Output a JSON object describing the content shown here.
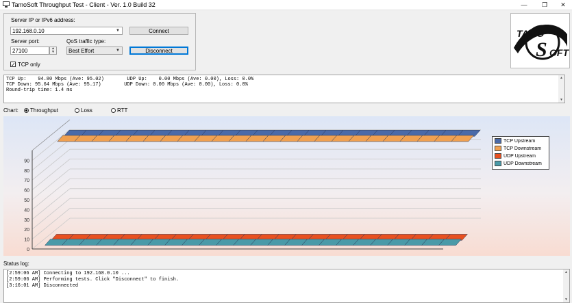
{
  "window": {
    "title": "TamoSoft Throughput Test - Client - Ver. 1.0 Build 32",
    "minimize": "—",
    "maximize": "❐",
    "close": "✕"
  },
  "connection": {
    "server_label": "Server IP or IPv6  address:",
    "server_value": "192.168.0.10",
    "port_label": "Server port:",
    "port_value": "27100",
    "qos_label": "QoS traffic type:",
    "qos_value": "Best Effort",
    "connect_label": "Connect",
    "disconnect_label": "Disconnect",
    "tcp_only_label": "TCP only",
    "tcp_only_checked": "✓"
  },
  "logo": {
    "top": "TAMO",
    "bottom": "OFT",
    "s": "S"
  },
  "stats": {
    "lines": [
      "TCP Up:    94.80 Mbps (Ave: 95.02)        UDP Up:    0.00 Mbps (Ave: 0.00), Loss: 0.0%",
      "TCP Down: 95.64 Mbps (Ave: 95.17)        UDP Down: 0.00 Mbps (Ave: 0.00), Loss: 0.0%",
      "Round-trip time: 1.4 ms"
    ]
  },
  "chart_options": {
    "label": "Chart:",
    "throughput": "Throughput",
    "loss": "Loss",
    "rtt": "RTT",
    "selected": "Throughput"
  },
  "chart_data": {
    "type": "area",
    "y_ticks": [
      "0",
      "10",
      "20",
      "30",
      "40",
      "50",
      "60",
      "70",
      "80",
      "90"
    ],
    "ylim": [
      0,
      100
    ],
    "series": [
      {
        "name": "TCP Upstream",
        "color": "#4a6aa8",
        "values": [
          95,
          95,
          95,
          95,
          95,
          95,
          95,
          95,
          95,
          95,
          95,
          95,
          95,
          95,
          95,
          95,
          95,
          95,
          95,
          95,
          95,
          95,
          95,
          95,
          95
        ]
      },
      {
        "name": "TCP Downstream",
        "color": "#f0a050",
        "values": [
          95,
          95,
          95,
          95,
          95,
          95,
          95,
          95,
          95,
          95,
          95,
          95,
          95,
          95,
          95,
          95,
          95,
          95,
          95,
          95,
          95,
          95,
          95,
          95,
          95
        ]
      },
      {
        "name": "UDP Upstream",
        "color": "#e85020",
        "values": [
          0,
          0,
          0,
          0,
          0,
          0,
          0,
          0,
          0,
          0,
          0,
          0,
          0,
          0,
          0,
          0,
          0,
          0,
          0,
          0,
          0,
          0,
          0,
          0,
          0
        ]
      },
      {
        "name": "UDP Downstream",
        "color": "#4a9aa8",
        "values": [
          0,
          0,
          0,
          0,
          0,
          0,
          0,
          0,
          0,
          0,
          0,
          0,
          0,
          0,
          0,
          0,
          0,
          0,
          0,
          0,
          0,
          0,
          0,
          0,
          0
        ]
      }
    ],
    "legend_position": "right"
  },
  "status": {
    "label": "Status log:",
    "lines": [
      "[2:59:06 AM] Connecting to 192.168.0.10 ...",
      "[2:59:06 AM] Performing tests. Click \"Disconnect\" to finish.",
      "[3:16:01 AM] Disconnected"
    ]
  }
}
